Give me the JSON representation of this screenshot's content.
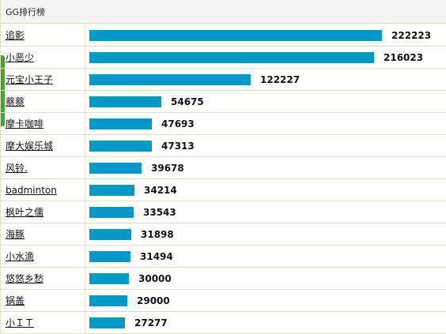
{
  "panel": {
    "title": "GG排行榜"
  },
  "colors": {
    "bar": "#0099cc",
    "accent_tab": "#3fa83a",
    "row_border": "#d9e8bf"
  },
  "ranking": {
    "max_value": 222223,
    "rows": [
      {
        "name": "追影",
        "value": 222223
      },
      {
        "name": "小恶少",
        "value": 216023
      },
      {
        "name": "元宝小王子",
        "value": 122227
      },
      {
        "name": "蔡蔡",
        "value": 54675
      },
      {
        "name": "摩卡咖啡",
        "value": 47693
      },
      {
        "name": "摩大娱乐城",
        "value": 47313
      },
      {
        "name": "风铃.",
        "value": 39678
      },
      {
        "name": "badminton",
        "value": 34214
      },
      {
        "name": "枫叶之儒",
        "value": 33543
      },
      {
        "name": "海豚",
        "value": 31898
      },
      {
        "name": "小水滴",
        "value": 31494
      },
      {
        "name": "悠悠乡愁",
        "value": 30000
      },
      {
        "name": "锅盖",
        "value": 29000
      },
      {
        "name": "小ＩＴ",
        "value": 27277
      }
    ]
  }
}
